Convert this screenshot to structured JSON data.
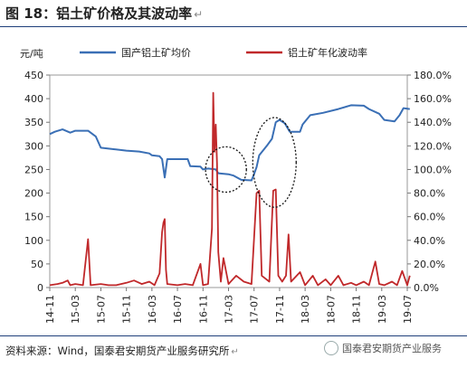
{
  "figure": {
    "title": "图 18：铝土矿价格及其波动率",
    "source": "资料来源：Wind，国泰君安期货产业服务研究所",
    "badge": "国泰君安期货产业服务"
  },
  "chart_data": {
    "type": "line",
    "ylabel_left": "元/吨",
    "ylim_left": [
      0,
      450
    ],
    "ylim_right": [
      0,
      1.8
    ],
    "y_ticks_left": [
      "0",
      "50",
      "100",
      "150",
      "200",
      "250",
      "300",
      "350",
      "400",
      "450"
    ],
    "y_ticks_right": [
      "0.0%",
      "20.0%",
      "40.0%",
      "60.0%",
      "80.0%",
      "100.0%",
      "120.0%",
      "140.0%",
      "160.0%",
      "180.0%"
    ],
    "x_ticks": [
      "14-11",
      "15-03",
      "15-07",
      "15-11",
      "16-03",
      "16-07",
      "16-11",
      "17-03",
      "17-07",
      "17-11",
      "18-03",
      "18-07",
      "18-11",
      "19-03",
      "19-07"
    ],
    "legend": [
      "国产铝土矿均价",
      "铝土矿年化波动率"
    ],
    "colors": {
      "price": "#3a6fb5",
      "vol": "#c0282a"
    },
    "series": [
      {
        "name": "国产铝土矿均价",
        "axis": "left",
        "color": "#3a6fb5",
        "points": [
          [
            0,
            325
          ],
          [
            0.2,
            330
          ],
          [
            0.5,
            335
          ],
          [
            0.8,
            328
          ],
          [
            1.0,
            332
          ],
          [
            1.5,
            332
          ],
          [
            1.8,
            320
          ],
          [
            2.0,
            296
          ],
          [
            2.5,
            293
          ],
          [
            3.0,
            290
          ],
          [
            3.5,
            288
          ],
          [
            3.9,
            284
          ],
          [
            4.0,
            280
          ],
          [
            4.3,
            278
          ],
          [
            4.4,
            272
          ],
          [
            4.5,
            233
          ],
          [
            4.6,
            272
          ],
          [
            5.4,
            272
          ],
          [
            5.5,
            257
          ],
          [
            5.9,
            256
          ],
          [
            6.0,
            250
          ],
          [
            6.2,
            252
          ],
          [
            6.5,
            250
          ],
          [
            6.6,
            242
          ],
          [
            7.0,
            240
          ],
          [
            7.2,
            237
          ],
          [
            7.5,
            228
          ],
          [
            7.9,
            227
          ],
          [
            8.0,
            240
          ],
          [
            8.1,
            255
          ],
          [
            8.2,
            280
          ],
          [
            8.5,
            300
          ],
          [
            8.7,
            315
          ],
          [
            8.85,
            350
          ],
          [
            9.0,
            355
          ],
          [
            9.2,
            348
          ],
          [
            9.4,
            330
          ],
          [
            9.8,
            330
          ],
          [
            9.9,
            345
          ],
          [
            10.2,
            365
          ],
          [
            10.7,
            370
          ],
          [
            11.3,
            378
          ],
          [
            11.8,
            386
          ],
          [
            12.3,
            385
          ],
          [
            12.5,
            378
          ],
          [
            12.9,
            368
          ],
          [
            13.1,
            355
          ],
          [
            13.5,
            352
          ],
          [
            13.7,
            365
          ],
          [
            13.85,
            380
          ],
          [
            14.1,
            378
          ]
        ]
      },
      {
        "name": "铝土矿年化波动率",
        "axis": "right",
        "color": "#c0282a",
        "points": [
          [
            0,
            0.02
          ],
          [
            0.3,
            0.03
          ],
          [
            0.5,
            0.04
          ],
          [
            0.7,
            0.06
          ],
          [
            0.8,
            0.02
          ],
          [
            1.0,
            0.03
          ],
          [
            1.3,
            0.02
          ],
          [
            1.5,
            0.41
          ],
          [
            1.6,
            0.02
          ],
          [
            2.0,
            0.03
          ],
          [
            2.3,
            0.02
          ],
          [
            2.6,
            0.02
          ],
          [
            3.0,
            0.04
          ],
          [
            3.3,
            0.06
          ],
          [
            3.6,
            0.03
          ],
          [
            3.9,
            0.05
          ],
          [
            4.1,
            0.02
          ],
          [
            4.3,
            0.12
          ],
          [
            4.4,
            0.47
          ],
          [
            4.45,
            0.55
          ],
          [
            4.5,
            0.58
          ],
          [
            4.55,
            0.15
          ],
          [
            4.6,
            0.03
          ],
          [
            5.0,
            0.02
          ],
          [
            5.3,
            0.03
          ],
          [
            5.6,
            0.02
          ],
          [
            5.9,
            0.2
          ],
          [
            6.0,
            0.02
          ],
          [
            6.2,
            0.03
          ],
          [
            6.35,
            0.5
          ],
          [
            6.4,
            1.65
          ],
          [
            6.45,
            1.15
          ],
          [
            6.5,
            1.38
          ],
          [
            6.55,
            1.05
          ],
          [
            6.6,
            0.3
          ],
          [
            6.7,
            0.05
          ],
          [
            6.8,
            0.25
          ],
          [
            7.0,
            0.03
          ],
          [
            7.3,
            0.1
          ],
          [
            7.6,
            0.05
          ],
          [
            7.9,
            0.03
          ],
          [
            8.1,
            0.8
          ],
          [
            8.2,
            0.82
          ],
          [
            8.3,
            0.1
          ],
          [
            8.6,
            0.05
          ],
          [
            8.75,
            0.82
          ],
          [
            8.85,
            0.83
          ],
          [
            8.95,
            0.1
          ],
          [
            9.1,
            0.05
          ],
          [
            9.25,
            0.1
          ],
          [
            9.35,
            0.45
          ],
          [
            9.45,
            0.05
          ],
          [
            9.8,
            0.13
          ],
          [
            10.0,
            0.02
          ],
          [
            10.3,
            0.1
          ],
          [
            10.5,
            0.02
          ],
          [
            10.8,
            0.07
          ],
          [
            11.0,
            0.02
          ],
          [
            11.3,
            0.1
          ],
          [
            11.5,
            0.02
          ],
          [
            11.8,
            0.04
          ],
          [
            12.0,
            0.02
          ],
          [
            12.3,
            0.05
          ],
          [
            12.5,
            0.02
          ],
          [
            12.75,
            0.22
          ],
          [
            12.9,
            0.03
          ],
          [
            13.1,
            0.02
          ],
          [
            13.4,
            0.05
          ],
          [
            13.6,
            0.02
          ],
          [
            13.8,
            0.14
          ],
          [
            13.9,
            0.08
          ],
          [
            14.0,
            0.02
          ],
          [
            14.1,
            0.1
          ]
        ]
      }
    ],
    "annotations": [
      {
        "type": "dashed-ellipse",
        "cx": 6.9,
        "cy_left": 250,
        "rx": 0.8,
        "ry_left": 48
      },
      {
        "type": "dashed-ellipse",
        "cx": 8.8,
        "cy_left": 265,
        "rx": 0.85,
        "ry_left": 95
      }
    ]
  }
}
